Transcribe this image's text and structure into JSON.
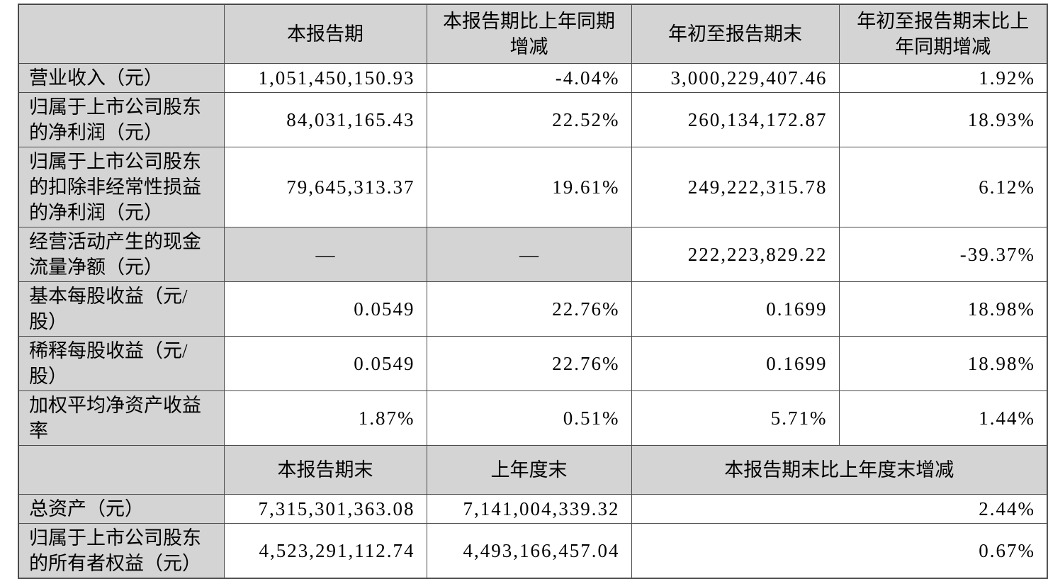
{
  "colors": {
    "cell_gray": "#d4d4d4",
    "border": "#4a4a4a",
    "background": "#ffffff",
    "text": "#000000"
  },
  "table": {
    "header_period": {
      "corner": "",
      "current_period": "本报告期",
      "current_period_yoy": "本报告期比上年同期增减",
      "ytd": "年初至报告期末",
      "ytd_yoy": "年初至报告期末比上年同期增减"
    },
    "rows_period": [
      {
        "label": "营业收入（元）",
        "current": "1,051,450,150.93",
        "current_yoy": "-4.04%",
        "ytd": "3,000,229,407.46",
        "ytd_yoy": "1.92%"
      },
      {
        "label": "归属于上市公司股东的净利润（元）",
        "current": "84,031,165.43",
        "current_yoy": "22.52%",
        "ytd": "260,134,172.87",
        "ytd_yoy": "18.93%"
      },
      {
        "label": "归属于上市公司股东的扣除非经常性损益的净利润（元）",
        "current": "79,645,313.37",
        "current_yoy": "19.61%",
        "ytd": "249,222,315.78",
        "ytd_yoy": "6.12%"
      },
      {
        "label": "经营活动产生的现金流量净额（元）",
        "current": "—",
        "current_yoy": "—",
        "ytd": "222,223,829.22",
        "ytd_yoy": "-39.37%"
      },
      {
        "label": "基本每股收益（元/股）",
        "current": "0.0549",
        "current_yoy": "22.76%",
        "ytd": "0.1699",
        "ytd_yoy": "18.98%"
      },
      {
        "label": "稀释每股收益（元/股）",
        "current": "0.0549",
        "current_yoy": "22.76%",
        "ytd": "0.1699",
        "ytd_yoy": "18.98%"
      },
      {
        "label": "加权平均净资产收益率",
        "current": "1.87%",
        "current_yoy": "0.51%",
        "ytd": "5.71%",
        "ytd_yoy": "1.44%"
      }
    ],
    "header_balance": {
      "corner": "",
      "period_end": "本报告期末",
      "prev_year_end": "上年度末",
      "change": "本报告期末比上年度末增减"
    },
    "rows_balance": [
      {
        "label": "总资产（元）",
        "period_end": "7,315,301,363.08",
        "prev_year_end": "7,141,004,339.32",
        "change": "2.44%"
      },
      {
        "label": "归属于上市公司股东的所有者权益（元）",
        "period_end": "4,523,291,112.74",
        "prev_year_end": "4,493,166,457.04",
        "change": "0.67%"
      }
    ]
  }
}
